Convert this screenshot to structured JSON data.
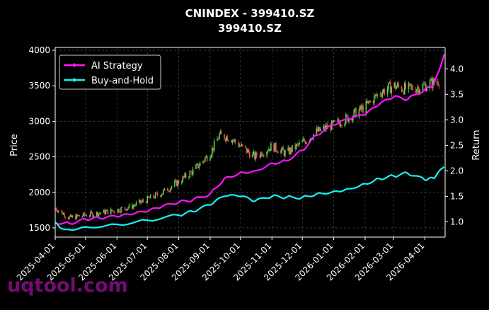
{
  "watermark": "uqtool.com",
  "chart_data": {
    "type": "line",
    "title": "CNINDEX - 399410.SZ",
    "subtitle": "399410.SZ",
    "ylabel": "Price",
    "y2label": "Return",
    "ylim": [
      1370,
      4040
    ],
    "y2lim": [
      0.7,
      4.42
    ],
    "yticks": [
      1500,
      2000,
      2500,
      3000,
      3500,
      4000
    ],
    "y2ticks": [
      1.0,
      1.5,
      2.0,
      2.5,
      3.0,
      3.5,
      4.0
    ],
    "y2tick_labels": [
      "1.0",
      "1.5",
      "2.0",
      "2.5",
      "3.0",
      "3.5",
      "4.0"
    ],
    "xlim": [
      "2025-04-01",
      "2026-04-21"
    ],
    "xticks": [
      "2025-04-01",
      "2025-05-01",
      "2025-06-01",
      "2025-07-01",
      "2025-08-01",
      "2025-09-01",
      "2025-10-01",
      "2025-11-01",
      "2025-12-01",
      "2026-01-01",
      "2026-02-01",
      "2026-03-01",
      "2026-04-01"
    ],
    "grid": true,
    "legend_position": "top-left",
    "colors": {
      "up": "#55d655",
      "down": "#e8524a",
      "ai": "#ff14ff",
      "bh": "#18f0f0",
      "axis": "#ffffff",
      "grid": "#555555"
    },
    "candles": {
      "x": [
        "2025-04-01",
        "2025-04-15",
        "2025-05-01",
        "2025-05-15",
        "2025-06-01",
        "2025-06-15",
        "2025-07-01",
        "2025-07-15",
        "2025-08-01",
        "2025-08-15",
        "2025-09-01",
        "2025-09-10",
        "2025-09-20",
        "2025-10-01",
        "2025-10-15",
        "2025-11-01",
        "2025-11-15",
        "2025-12-01",
        "2025-12-15",
        "2026-01-01",
        "2026-01-15",
        "2026-02-01",
        "2026-02-15",
        "2026-03-01",
        "2026-03-15",
        "2026-04-01",
        "2026-04-15"
      ],
      "close": [
        1780,
        1640,
        1680,
        1710,
        1750,
        1800,
        1900,
        1990,
        2150,
        2300,
        2550,
        2800,
        2780,
        2650,
        2500,
        2650,
        2550,
        2700,
        2850,
        2950,
        3050,
        3200,
        3400,
        3500,
        3450,
        3500,
        3580
      ]
    },
    "series": [
      {
        "name": "AI Strategy",
        "x": [
          "2025-04-01",
          "2025-04-15",
          "2025-05-01",
          "2025-05-15",
          "2025-06-01",
          "2025-06-15",
          "2025-07-01",
          "2025-07-15",
          "2025-08-01",
          "2025-08-15",
          "2025-09-01",
          "2025-09-15",
          "2025-10-01",
          "2025-10-15",
          "2025-11-01",
          "2025-11-15",
          "2025-12-01",
          "2025-12-15",
          "2026-01-01",
          "2026-01-15",
          "2026-02-01",
          "2026-02-15",
          "2026-03-01",
          "2026-03-15",
          "2026-04-01",
          "2026-04-10",
          "2026-04-20"
        ],
        "values": [
          0.99,
          0.97,
          1.05,
          1.07,
          1.1,
          1.14,
          1.2,
          1.29,
          1.38,
          1.43,
          1.55,
          1.85,
          1.97,
          2.0,
          2.15,
          2.2,
          2.4,
          2.7,
          2.9,
          3.0,
          3.1,
          3.3,
          3.45,
          3.4,
          3.6,
          3.7,
          4.28
        ]
      },
      {
        "name": "Buy-and-Hold",
        "x": [
          "2025-04-01",
          "2025-04-10",
          "2025-05-01",
          "2025-06-01",
          "2025-07-01",
          "2025-08-01",
          "2025-08-15",
          "2025-09-01",
          "2025-09-15",
          "2025-10-01",
          "2025-10-15",
          "2025-11-01",
          "2025-11-15",
          "2025-12-01",
          "2025-12-15",
          "2026-01-01",
          "2026-01-15",
          "2026-02-01",
          "2026-02-15",
          "2026-03-01",
          "2026-03-15",
          "2026-04-01",
          "2026-04-10",
          "2026-04-20"
        ],
        "values": [
          0.99,
          0.85,
          0.9,
          0.95,
          1.03,
          1.13,
          1.2,
          1.33,
          1.5,
          1.5,
          1.4,
          1.5,
          1.48,
          1.48,
          1.55,
          1.6,
          1.65,
          1.75,
          1.85,
          1.9,
          1.95,
          1.82,
          1.85,
          2.08
        ]
      }
    ]
  }
}
